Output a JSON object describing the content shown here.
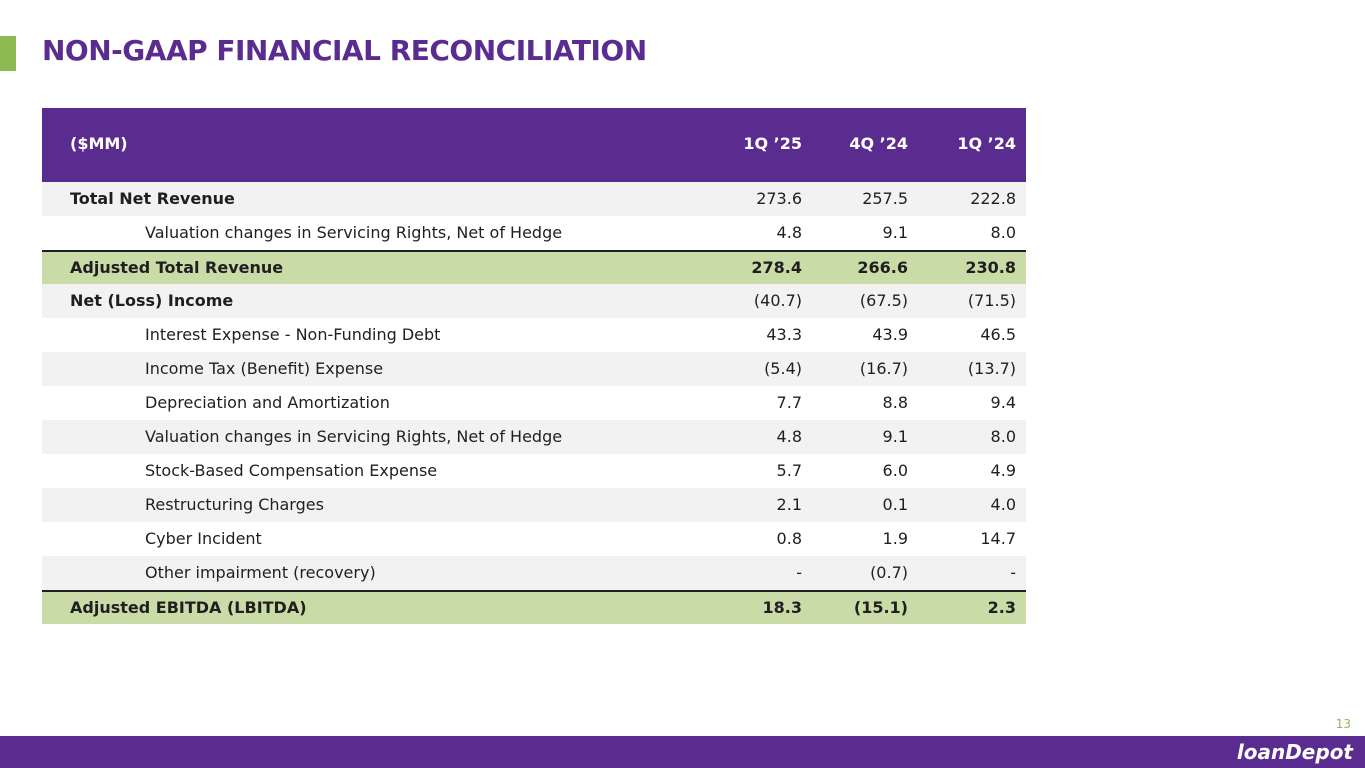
{
  "page": {
    "title": "NON-GAAP FINANCIAL RECONCILIATION",
    "page_number": "13",
    "logo_text": "loanDepot"
  },
  "table": {
    "header": {
      "label": "($MM)",
      "columns": [
        "1Q ’25",
        "4Q ’24",
        "1Q ’24"
      ]
    },
    "rows": [
      {
        "label": "Total Net Revenue",
        "values": [
          "273.6",
          "257.5",
          "222.8"
        ]
      },
      {
        "label": "Valuation changes in Servicing Rights, Net of Hedge",
        "values": [
          "4.8",
          "9.1",
          "8.0"
        ]
      },
      {
        "label": "Adjusted Total Revenue",
        "values": [
          "278.4",
          "266.6",
          "230.8"
        ]
      },
      {
        "label": "Net (Loss) Income",
        "values": [
          "(40.7)",
          "(67.5)",
          "(71.5)"
        ]
      },
      {
        "label": "Interest Expense - Non-Funding Debt",
        "values": [
          "43.3",
          "43.9",
          "46.5"
        ]
      },
      {
        "label": "Income Tax (Benefit) Expense",
        "values": [
          "(5.4)",
          "(16.7)",
          "(13.7)"
        ]
      },
      {
        "label": "Depreciation and Amortization",
        "values": [
          "7.7",
          "8.8",
          "9.4"
        ]
      },
      {
        "label": "Valuation changes in Servicing Rights, Net of Hedge",
        "values": [
          "4.8",
          "9.1",
          "8.0"
        ]
      },
      {
        "label": "Stock-Based Compensation Expense",
        "values": [
          "5.7",
          "6.0",
          "4.9"
        ]
      },
      {
        "label": "Restructuring Charges",
        "values": [
          "2.1",
          "0.1",
          "4.0"
        ]
      },
      {
        "label": "Cyber Incident",
        "values": [
          "0.8",
          "1.9",
          "14.7"
        ]
      },
      {
        "label": "Other impairment (recovery)",
        "values": [
          "-",
          "(0.7)",
          "-"
        ]
      },
      {
        "label": "Adjusted EBITDA (LBITDA)",
        "values": [
          "18.3",
          "(15.1)",
          "2.3"
        ]
      }
    ]
  },
  "colors": {
    "brand_purple": "#5b2c8f",
    "accent_green": "#8cba51",
    "highlight_green": "#c9dba7"
  }
}
